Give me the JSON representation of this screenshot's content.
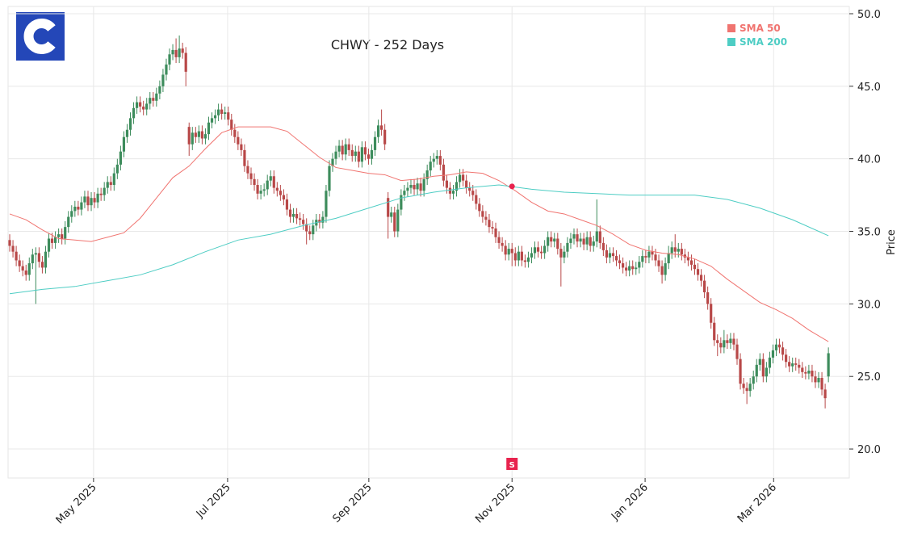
{
  "chart_data": {
    "type": "candlestick",
    "title": "CHWY - 252 Days",
    "ylabel": "Price",
    "open": [
      34.4,
      34.0,
      33.6,
      33.0,
      32.6,
      32.3,
      32.0,
      32.8,
      33.4,
      33.5,
      32.9,
      32.5,
      33.6,
      34.5,
      34.2,
      34.6,
      34.8,
      34.5,
      35.3,
      36.0,
      36.4,
      36.7,
      36.5,
      37.0,
      37.4,
      36.8,
      37.3,
      37.0,
      37.6,
      37.5,
      38.0,
      38.4,
      38.2,
      39.0,
      39.6,
      40.5,
      41.5,
      42.0,
      42.8,
      43.5,
      43.9,
      43.6,
      43.4,
      43.8,
      44.2,
      44.0,
      44.5,
      45.0,
      45.8,
      46.5,
      47.2,
      47.5,
      47.0,
      47.6,
      47.3,
      42.2,
      41.0,
      41.8,
      41.5,
      41.9,
      41.4,
      41.7,
      42.5,
      42.8,
      43.0,
      43.4,
      43.1,
      43.2,
      42.7,
      42.0,
      41.5,
      41.0,
      40.6,
      39.5,
      39.0,
      38.6,
      38.2,
      37.6,
      37.8,
      37.9,
      38.5,
      38.8,
      38.0,
      37.8,
      37.5,
      37.2,
      36.5,
      36.0,
      36.2,
      35.9,
      35.8,
      35.5,
      35.0,
      34.8,
      35.4,
      35.8,
      35.6,
      36.0,
      37.8,
      39.5,
      40.0,
      40.5,
      40.9,
      40.3,
      41.0,
      40.6,
      40.2,
      40.5,
      39.8,
      40.8,
      40.3,
      40.0,
      40.6,
      41.5,
      42.3,
      42.0,
      37.3,
      36.0,
      36.3,
      35.0,
      36.5,
      37.5,
      37.8,
      38.0,
      38.2,
      37.9,
      38.3,
      37.8,
      38.6,
      39.2,
      39.8,
      40.0,
      40.2,
      39.6,
      38.5,
      38.0,
      37.6,
      37.8,
      38.4,
      38.9,
      38.5,
      38.0,
      37.8,
      37.5,
      36.9,
      36.4,
      36.0,
      35.8,
      35.3,
      35.2,
      34.6,
      34.2,
      34.0,
      33.4,
      33.8,
      33.5,
      33.0,
      33.6,
      33.0,
      32.9,
      33.2,
      33.5,
      33.9,
      33.6,
      33.5,
      34.0,
      34.6,
      34.3,
      34.5,
      33.8,
      33.2,
      33.6,
      34.2,
      34.5,
      34.8,
      34.3,
      34.5,
      34.1,
      34.6,
      34.0,
      34.3,
      35.0,
      34.2,
      33.7,
      33.2,
      33.5,
      33.3,
      33.0,
      32.8,
      32.5,
      32.3,
      32.6,
      32.4,
      32.5,
      32.9,
      33.3,
      33.2,
      33.6,
      33.4,
      33.0,
      32.6,
      32.0,
      32.8,
      33.5,
      33.9,
      33.6,
      33.8,
      33.4,
      33.2,
      33.0,
      32.7,
      32.4,
      32.0,
      31.6,
      30.8,
      30.0,
      28.7,
      27.5,
      27.3,
      27.0,
      27.5,
      27.3,
      27.6,
      27.2,
      26.2,
      24.5,
      24.2,
      24.0,
      24.5,
      25.0,
      25.8,
      26.2,
      25.0,
      25.6,
      26.3,
      26.8,
      27.2,
      27.0,
      26.5,
      26.0,
      25.7,
      25.9,
      25.8,
      25.6,
      25.3,
      25.2,
      25.4,
      25.0,
      24.6,
      24.9,
      24.1,
      25.0
    ],
    "high": [
      34.8,
      34.4,
      34.0,
      33.4,
      33.0,
      32.7,
      33.2,
      33.8,
      33.9,
      33.9,
      33.3,
      34.0,
      34.9,
      34.9,
      35.0,
      35.2,
      35.2,
      35.7,
      36.4,
      36.8,
      37.1,
      37.1,
      37.4,
      37.8,
      37.8,
      37.7,
      37.7,
      38.0,
      38.0,
      38.4,
      38.8,
      38.8,
      39.4,
      40.0,
      40.9,
      41.9,
      42.4,
      43.2,
      43.9,
      44.3,
      44.3,
      44.0,
      44.2,
      44.6,
      44.6,
      44.9,
      45.4,
      46.2,
      46.9,
      47.6,
      47.9,
      48.3,
      48.5,
      48.0,
      47.7,
      42.5,
      42.2,
      42.2,
      42.3,
      42.3,
      42.1,
      42.9,
      43.2,
      43.4,
      43.8,
      43.8,
      43.6,
      43.6,
      43.1,
      42.4,
      41.9,
      41.4,
      41.0,
      39.9,
      39.4,
      39.0,
      38.6,
      38.2,
      38.3,
      38.9,
      39.2,
      39.2,
      38.4,
      38.2,
      37.9,
      37.6,
      36.9,
      36.6,
      36.6,
      36.3,
      36.2,
      35.9,
      35.4,
      35.8,
      36.2,
      36.2,
      36.4,
      38.2,
      39.9,
      40.4,
      40.9,
      41.3,
      41.3,
      41.4,
      41.4,
      41.0,
      40.9,
      40.9,
      41.2,
      41.2,
      40.7,
      41.0,
      41.9,
      42.7,
      43.4,
      42.4,
      37.7,
      36.7,
      36.7,
      36.9,
      37.9,
      38.2,
      38.4,
      38.6,
      38.6,
      38.7,
      38.7,
      39.0,
      39.6,
      40.2,
      40.4,
      40.6,
      40.6,
      40.0,
      38.9,
      38.4,
      38.2,
      38.8,
      39.3,
      39.3,
      38.9,
      38.4,
      38.2,
      37.9,
      37.3,
      36.8,
      36.4,
      36.2,
      35.7,
      35.6,
      35.0,
      34.6,
      34.4,
      34.2,
      34.2,
      33.9,
      34.0,
      34.0,
      33.4,
      33.6,
      33.9,
      34.3,
      34.3,
      34.0,
      34.4,
      35.0,
      35.0,
      34.9,
      34.9,
      34.2,
      34.0,
      34.6,
      34.9,
      35.2,
      35.2,
      34.9,
      34.9,
      35.0,
      35.0,
      34.7,
      37.2,
      35.4,
      34.6,
      34.1,
      33.9,
      33.9,
      33.7,
      33.4,
      33.2,
      32.9,
      33.0,
      33.0,
      32.9,
      33.3,
      33.7,
      33.7,
      34.0,
      34.0,
      33.8,
      33.4,
      33.0,
      33.2,
      34.0,
      34.3,
      34.8,
      34.2,
      34.2,
      33.8,
      33.6,
      33.4,
      33.1,
      32.8,
      32.4,
      32.0,
      31.2,
      30.4,
      29.1,
      27.9,
      27.7,
      28.2,
      27.9,
      28.0,
      28.0,
      27.6,
      26.6,
      24.9,
      24.6,
      24.9,
      25.4,
      26.2,
      26.6,
      26.6,
      26.0,
      26.7,
      27.2,
      27.6,
      27.6,
      27.4,
      26.9,
      26.4,
      26.3,
      26.3,
      26.2,
      26.0,
      25.7,
      25.8,
      25.8,
      25.4,
      25.3,
      25.3,
      24.5,
      27.0
    ],
    "low": [
      33.6,
      33.2,
      32.6,
      32.2,
      31.9,
      31.6,
      31.6,
      32.4,
      30.0,
      32.5,
      32.1,
      32.1,
      33.2,
      33.8,
      33.8,
      34.2,
      34.1,
      34.1,
      34.9,
      35.6,
      36.0,
      36.1,
      36.1,
      36.6,
      36.4,
      36.4,
      36.6,
      36.6,
      37.1,
      37.1,
      37.6,
      37.8,
      37.8,
      38.6,
      39.2,
      40.1,
      41.1,
      41.6,
      42.4,
      43.1,
      43.2,
      43.0,
      43.0,
      43.4,
      43.6,
      43.6,
      44.1,
      44.6,
      45.4,
      46.1,
      46.8,
      46.6,
      46.6,
      46.9,
      45.0,
      40.2,
      40.6,
      41.1,
      41.1,
      41.0,
      41.0,
      41.3,
      42.1,
      42.4,
      42.6,
      42.7,
      42.7,
      42.3,
      41.6,
      41.1,
      40.6,
      40.2,
      39.1,
      38.6,
      38.2,
      37.8,
      37.2,
      37.2,
      37.4,
      37.5,
      38.1,
      37.6,
      37.4,
      37.1,
      36.8,
      36.1,
      35.6,
      35.6,
      35.5,
      35.4,
      35.1,
      34.1,
      34.4,
      34.4,
      35.0,
      35.2,
      35.2,
      35.6,
      37.4,
      39.1,
      39.6,
      40.1,
      39.9,
      39.9,
      40.2,
      39.8,
      39.8,
      39.4,
      39.4,
      39.9,
      39.6,
      39.6,
      40.2,
      41.1,
      41.6,
      40.6,
      34.5,
      35.6,
      34.6,
      34.6,
      36.1,
      37.1,
      37.4,
      37.6,
      37.5,
      37.5,
      37.4,
      37.4,
      38.2,
      38.8,
      39.4,
      39.6,
      39.2,
      38.1,
      37.6,
      37.2,
      37.2,
      37.4,
      38.0,
      38.1,
      37.6,
      37.4,
      37.1,
      36.5,
      36.0,
      35.6,
      35.4,
      34.9,
      34.8,
      34.2,
      33.8,
      33.6,
      33.0,
      33.0,
      32.6,
      32.6,
      32.6,
      32.6,
      32.5,
      32.5,
      32.8,
      33.1,
      33.2,
      33.1,
      33.1,
      33.6,
      33.9,
      33.9,
      33.4,
      31.2,
      32.8,
      33.2,
      33.8,
      34.1,
      33.9,
      33.9,
      33.7,
      33.7,
      33.6,
      33.6,
      33.9,
      33.8,
      33.3,
      32.8,
      32.8,
      32.9,
      32.6,
      32.4,
      32.1,
      31.9,
      31.9,
      32.0,
      32.0,
      32.1,
      32.5,
      32.8,
      32.8,
      33.0,
      32.6,
      32.2,
      31.4,
      31.6,
      32.4,
      33.1,
      33.2,
      33.2,
      33.0,
      32.8,
      32.6,
      32.3,
      32.0,
      31.6,
      31.2,
      30.4,
      29.6,
      28.3,
      27.1,
      26.4,
      26.6,
      26.6,
      26.9,
      26.9,
      26.8,
      25.8,
      24.1,
      23.8,
      23.1,
      23.6,
      24.1,
      24.6,
      25.4,
      24.6,
      24.6,
      25.2,
      25.9,
      26.4,
      26.6,
      26.1,
      25.6,
      25.3,
      25.3,
      25.4,
      25.2,
      24.9,
      24.8,
      24.8,
      24.6,
      24.2,
      24.2,
      23.7,
      22.8,
      24.6
    ],
    "close": [
      34.0,
      33.6,
      33.0,
      32.6,
      32.3,
      32.0,
      32.8,
      33.4,
      33.5,
      32.9,
      32.5,
      33.6,
      34.5,
      34.2,
      34.6,
      34.8,
      34.5,
      35.3,
      36.0,
      36.4,
      36.7,
      36.5,
      37.0,
      37.4,
      36.8,
      37.3,
      37.0,
      37.6,
      37.5,
      38.0,
      38.4,
      38.2,
      39.0,
      39.6,
      40.5,
      41.5,
      42.0,
      42.8,
      43.5,
      43.9,
      43.6,
      43.4,
      43.8,
      44.2,
      44.0,
      44.5,
      45.0,
      45.8,
      46.5,
      47.2,
      47.5,
      47.0,
      47.6,
      47.3,
      46.0,
      41.0,
      41.8,
      41.5,
      41.9,
      41.4,
      41.7,
      42.5,
      42.8,
      43.0,
      43.4,
      43.1,
      43.2,
      42.7,
      42.0,
      41.5,
      41.0,
      40.6,
      39.5,
      39.0,
      38.6,
      38.2,
      37.6,
      37.8,
      37.9,
      38.5,
      38.8,
      38.0,
      37.8,
      37.5,
      37.2,
      36.5,
      36.0,
      36.2,
      35.9,
      35.8,
      35.5,
      35.0,
      34.8,
      35.4,
      35.8,
      35.6,
      36.0,
      37.8,
      39.5,
      40.0,
      40.5,
      40.9,
      40.3,
      41.0,
      40.6,
      40.2,
      40.5,
      39.8,
      40.8,
      40.3,
      40.0,
      40.6,
      41.5,
      42.3,
      42.0,
      41.0,
      36.0,
      36.3,
      35.0,
      36.5,
      37.5,
      37.8,
      38.0,
      38.2,
      37.9,
      38.3,
      37.8,
      38.6,
      39.2,
      39.8,
      40.0,
      40.2,
      39.6,
      38.5,
      38.0,
      37.6,
      37.8,
      38.4,
      38.9,
      38.5,
      38.0,
      37.8,
      37.5,
      36.9,
      36.4,
      36.0,
      35.8,
      35.3,
      35.2,
      34.6,
      34.2,
      34.0,
      33.4,
      33.8,
      33.5,
      33.0,
      33.6,
      33.0,
      32.9,
      33.2,
      33.5,
      33.9,
      33.6,
      33.5,
      34.0,
      34.6,
      34.3,
      34.5,
      33.8,
      33.2,
      33.6,
      34.2,
      34.5,
      34.8,
      34.3,
      34.5,
      34.1,
      34.6,
      34.0,
      34.3,
      35.0,
      34.2,
      33.7,
      33.2,
      33.5,
      33.3,
      33.0,
      32.8,
      32.5,
      32.3,
      32.6,
      32.4,
      32.5,
      32.9,
      33.3,
      33.2,
      33.6,
      33.4,
      33.0,
      32.6,
      32.0,
      32.8,
      33.5,
      33.9,
      33.6,
      33.8,
      33.4,
      33.2,
      33.0,
      32.7,
      32.4,
      32.0,
      31.6,
      30.8,
      30.0,
      28.7,
      27.5,
      27.3,
      27.0,
      27.5,
      27.3,
      27.6,
      27.2,
      26.2,
      24.5,
      24.2,
      24.0,
      24.5,
      25.0,
      25.8,
      26.2,
      25.0,
      25.6,
      26.3,
      26.8,
      27.2,
      27.0,
      26.5,
      26.0,
      25.7,
      25.9,
      25.8,
      25.6,
      25.3,
      25.2,
      25.4,
      25.0,
      24.6,
      24.9,
      24.1,
      23.5,
      26.6
    ],
    "up_color": "#3d8c5c",
    "down_color": "#b84848",
    "series": [
      {
        "name": "SMA 50",
        "color": "#f07470",
        "x": [
          0,
          5,
          10,
          15,
          20,
          25,
          30,
          35,
          40,
          45,
          50,
          55,
          60,
          65,
          70,
          75,
          80,
          85,
          90,
          95,
          100,
          105,
          110,
          115,
          120,
          125,
          130,
          135,
          140,
          145,
          150,
          155,
          160,
          165,
          170,
          175,
          180,
          185,
          190,
          195,
          200,
          205,
          210,
          215,
          220,
          225,
          230,
          235,
          240,
          245,
          251
        ],
        "values": [
          36.2,
          35.8,
          35.1,
          34.5,
          34.4,
          34.3,
          34.6,
          34.9,
          35.9,
          37.3,
          38.7,
          39.5,
          40.7,
          41.8,
          42.2,
          42.2,
          42.2,
          41.9,
          41.0,
          40.1,
          39.4,
          39.2,
          39.0,
          38.9,
          38.5,
          38.6,
          38.8,
          38.9,
          39.1,
          39.0,
          38.5,
          37.8,
          37.0,
          36.4,
          36.2,
          35.8,
          35.4,
          34.8,
          34.1,
          33.7,
          33.5,
          33.4,
          33.1,
          32.6,
          31.7,
          30.9,
          30.1,
          29.6,
          29.0,
          28.2,
          27.4
        ]
      },
      {
        "name": "SMA 200",
        "color": "#4ecdc4",
        "x": [
          0,
          10,
          20,
          30,
          40,
          50,
          60,
          70,
          80,
          90,
          100,
          110,
          120,
          130,
          140,
          150,
          160,
          170,
          180,
          190,
          200,
          210,
          220,
          230,
          240,
          251
        ],
        "values": [
          30.7,
          31.0,
          31.2,
          31.6,
          32.0,
          32.7,
          33.6,
          34.4,
          34.8,
          35.4,
          35.9,
          36.6,
          37.3,
          37.7,
          38.0,
          38.2,
          37.9,
          37.7,
          37.6,
          37.5,
          37.5,
          37.5,
          37.2,
          36.6,
          35.8,
          34.7
        ]
      }
    ],
    "signal": {
      "x": 154,
      "y": 38.1,
      "label": "S",
      "color": "#e8234e"
    },
    "xlim": [
      -0.5,
      257.4
    ],
    "xticks": [
      {
        "value": 25.7,
        "label": "May 2025"
      },
      {
        "value": 66.8,
        "label": "Jul 2025"
      },
      {
        "value": 110.1,
        "label": "Sep 2025"
      },
      {
        "value": 154,
        "label": "Nov 2025"
      },
      {
        "value": 194.8,
        "label": "Jan 2026"
      },
      {
        "value": 234.2,
        "label": "Mar 2026"
      }
    ],
    "ylim": [
      18.0,
      50.5
    ],
    "yticks": [
      {
        "value": 20,
        "label": "20.0"
      },
      {
        "value": 25,
        "label": "25.0"
      },
      {
        "value": 30,
        "label": "30.0"
      },
      {
        "value": 35,
        "label": "35.0"
      },
      {
        "value": 40,
        "label": "40.0"
      },
      {
        "value": 45,
        "label": "45.0"
      },
      {
        "value": 50,
        "label": "50.0"
      }
    ],
    "grid": true,
    "legend": "upper right"
  }
}
